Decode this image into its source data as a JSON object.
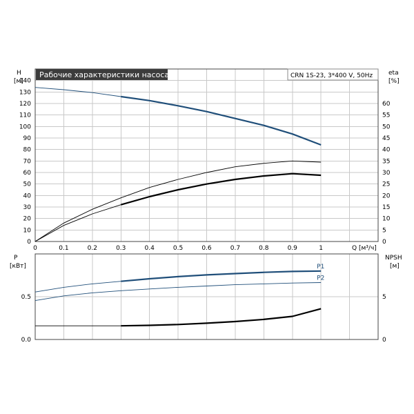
{
  "chart_data": [
    {
      "type": "line",
      "title": "Рабочие характеристики насоса",
      "subtitle": "CRN 1S-23, 3*400 V, 50Hz",
      "ylabel": "H",
      "yunit": "[м]",
      "y2label": "eta",
      "y2unit": "[%]",
      "xlabel": "Q",
      "xunit": "[м³/ч]",
      "xlim": [
        0,
        1.2
      ],
      "ylim": [
        0,
        150
      ],
      "y2lim": [
        0,
        75
      ],
      "xticks": [
        "0",
        "0.1",
        "0.2",
        "0.3",
        "0.4",
        "0.5",
        "0.6",
        "0.7",
        "0.8",
        "0.9",
        "1"
      ],
      "yticks": [
        "0",
        "10",
        "20",
        "30",
        "40",
        "50",
        "60",
        "70",
        "80",
        "90",
        "100",
        "110",
        "120",
        "130",
        "140"
      ],
      "y2ticks": [
        "0",
        "5",
        "10",
        "15",
        "20",
        "25",
        "30",
        "35",
        "40",
        "45",
        "50",
        "55",
        "60"
      ],
      "grid": true,
      "series": [
        {
          "id": "head",
          "color": "#1f4e79",
          "thin_to": 0.3,
          "axis": "y",
          "x": [
            0,
            0.1,
            0.2,
            0.3,
            0.4,
            0.5,
            0.6,
            0.7,
            0.8,
            0.9,
            1.0
          ],
          "y": [
            134,
            132,
            129.5,
            126,
            122.5,
            118,
            113,
            107,
            101,
            93.5,
            84
          ]
        },
        {
          "id": "eta-upper",
          "color": "#000000",
          "thin_to": 1.0,
          "axis": "y2",
          "x": [
            0,
            0.1,
            0.2,
            0.3,
            0.4,
            0.5,
            0.6,
            0.7,
            0.8,
            0.9,
            1.0
          ],
          "y": [
            0,
            8,
            14,
            19,
            23.5,
            27,
            30,
            32.5,
            34,
            35,
            34.5
          ]
        },
        {
          "id": "eta-lower",
          "color": "#000000",
          "thin_to": 0.3,
          "axis": "y2",
          "x": [
            0,
            0.1,
            0.2,
            0.3,
            0.4,
            0.5,
            0.6,
            0.7,
            0.8,
            0.9,
            1.0
          ],
          "y": [
            0,
            7,
            12,
            16,
            19.5,
            22.5,
            25,
            27,
            28.5,
            29.5,
            28.8
          ]
        }
      ]
    },
    {
      "type": "line",
      "ylabel": "P",
      "yunit": "[кВт]",
      "y2label": "NPSH",
      "y2unit": "[м]",
      "xlim": [
        0,
        1.2
      ],
      "ylim": [
        0,
        1.0
      ],
      "y2lim": [
        0,
        10
      ],
      "yticks": [
        "0.0",
        "0.5"
      ],
      "y2ticks": [
        "0",
        "5"
      ],
      "grid": true,
      "series": [
        {
          "id": "p1",
          "name": "P1",
          "color": "#1f4e79",
          "thin_to": 0.3,
          "axis": "y",
          "x": [
            0,
            0.1,
            0.2,
            0.3,
            0.4,
            0.5,
            0.6,
            0.7,
            0.8,
            0.9,
            1.0
          ],
          "y": [
            0.555,
            0.61,
            0.65,
            0.68,
            0.71,
            0.735,
            0.755,
            0.77,
            0.785,
            0.795,
            0.8
          ]
        },
        {
          "id": "p2",
          "name": "P2",
          "color": "#1f4e79",
          "thin_to": 1.0,
          "axis": "y",
          "x": [
            0,
            0.1,
            0.2,
            0.3,
            0.4,
            0.5,
            0.6,
            0.7,
            0.8,
            0.9,
            1.0
          ],
          "y": [
            0.455,
            0.51,
            0.545,
            0.57,
            0.59,
            0.61,
            0.625,
            0.64,
            0.65,
            0.66,
            0.665
          ]
        },
        {
          "id": "npsh",
          "color": "#000000",
          "thin_to": 0.3,
          "axis": "y2",
          "x": [
            0,
            0.1,
            0.2,
            0.3,
            0.4,
            0.5,
            0.6,
            0.7,
            0.8,
            0.9,
            1.0
          ],
          "y": [
            1.6,
            1.6,
            1.6,
            1.6,
            1.65,
            1.75,
            1.9,
            2.1,
            2.35,
            2.7,
            3.6
          ]
        }
      ]
    }
  ]
}
